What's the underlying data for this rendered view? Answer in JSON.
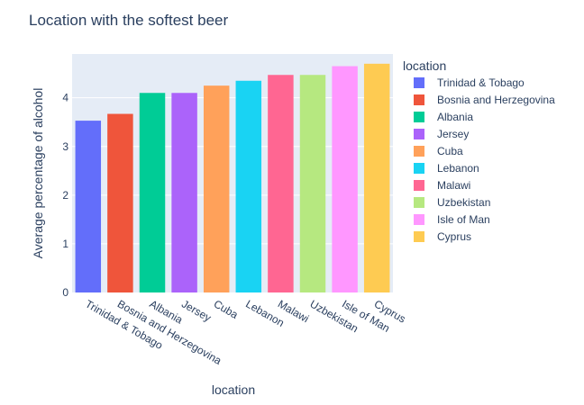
{
  "chart_data": {
    "type": "bar",
    "title": "Location with the softest beer",
    "xlabel": "location",
    "ylabel": "Average percentage of alcohol",
    "ylim": [
      0,
      4.9
    ],
    "yticks": [
      0,
      1,
      2,
      3,
      4
    ],
    "grid": true,
    "legend": {
      "title": "location",
      "placement": "right"
    },
    "categories": [
      "Trinidad & Tobago",
      "Bosnia and Herzegovina",
      "Albania",
      "Jersey",
      "Cuba",
      "Lebanon",
      "Malawi",
      "Uzbekistan",
      "Isle of Man",
      "Cyprus"
    ],
    "values": [
      3.53,
      3.67,
      4.1,
      4.1,
      4.25,
      4.35,
      4.47,
      4.47,
      4.65,
      4.7
    ],
    "colors": [
      "#636efa",
      "#EF553B",
      "#00cc96",
      "#ab63fa",
      "#FFA15A",
      "#19d3f3",
      "#FF6692",
      "#B6E880",
      "#FF97FF",
      "#FECB52"
    ]
  }
}
